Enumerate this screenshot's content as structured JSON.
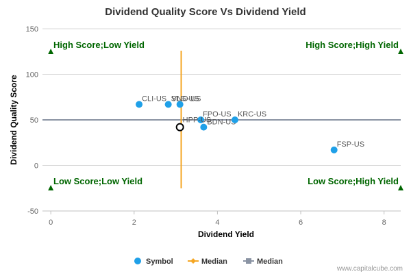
{
  "chart_data": {
    "type": "scatter",
    "title": "Dividend Quality Score Vs Dividend Yield",
    "xlabel": "Dividend Yield",
    "ylabel": "Dividend Quality Score",
    "xlim": [
      -0.2,
      8.4
    ],
    "ylim": [
      -50,
      150
    ],
    "xticks": [
      0,
      2,
      4,
      6,
      8
    ],
    "yticks": [
      -50,
      0,
      50,
      100,
      150
    ],
    "grid": "horizontal",
    "points": [
      {
        "label": "CLI-US",
        "x": 2.12,
        "y": 67
      },
      {
        "label": "SLG-US",
        "x": 2.82,
        "y": 67
      },
      {
        "label": "VNO-US",
        "x": 3.1,
        "y": 67
      },
      {
        "label": "FPO-US",
        "x": 3.6,
        "y": 50
      },
      {
        "label": "BDN-US",
        "x": 3.67,
        "y": 42
      },
      {
        "label": "KRC-US",
        "x": 4.42,
        "y": 50
      },
      {
        "label": "FSP-US",
        "x": 6.8,
        "y": 17
      }
    ],
    "highlight": {
      "label": "HPP-US",
      "x": 3.1,
      "y": 42
    },
    "median_x": 3.13,
    "median_y": 50,
    "quadrant_labels": {
      "top_left": "High Score;Low Yield",
      "top_right": "High Score;High Yield",
      "bottom_left": "Low Score;Low Yield",
      "bottom_right": "Low Score;High Yield"
    },
    "legend": [
      {
        "name": "Symbol",
        "kind": "dot"
      },
      {
        "name": "Median",
        "kind": "orange-line"
      },
      {
        "name": "Median",
        "kind": "gray-line"
      }
    ],
    "legend_position": "bottom-center"
  },
  "credit": "www.capitalcube.com",
  "colors": {
    "point": "#1fa0e8",
    "median_x": "#f5a623",
    "median_y": "#8a93a3",
    "quadrant": "#006600",
    "grid": "#d8d8d8"
  }
}
